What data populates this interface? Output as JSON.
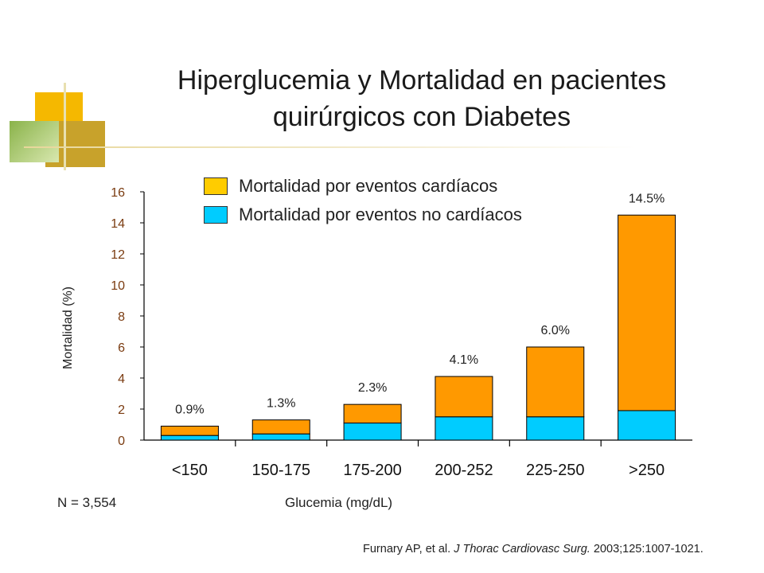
{
  "title": "Hiperglucemia y Mortalidad en pacientes\nquirúrgicos con Diabetes",
  "colors": {
    "cardiac": "#ff9900",
    "noncardiac": "#00ccff",
    "tick_text": "#7a3b10",
    "deco_yellow": "#f5b800",
    "deco_olive": "#c8a22b",
    "deco_green": "#8ab34a"
  },
  "legend": [
    {
      "label": "Mortalidad por eventos cardíacos",
      "color": "#ffcc00"
    },
    {
      "label": "Mortalidad por eventos no cardíacos",
      "color": "#00ccff"
    }
  ],
  "n_label": "N = 3,554",
  "citation": {
    "authors": "Furnary AP, et al. ",
    "journal": "J Thorac Cardiovasc Surg.",
    "details": " 2003;125:1007-1021."
  },
  "chart_data": {
    "type": "bar",
    "stacked": true,
    "title": "Hiperglucemia y Mortalidad en pacientes quirúrgicos con Diabetes",
    "xlabel": "Glucemia (mg/dL)",
    "ylabel": "Mortalidad (%)",
    "ylim": [
      0,
      16
    ],
    "yticks": [
      0,
      2,
      4,
      6,
      8,
      10,
      12,
      14,
      16
    ],
    "grid": false,
    "legend_position": "top",
    "categories": [
      "<150",
      "150-175",
      "175-200",
      "200-252",
      "225-250",
      ">250"
    ],
    "series": [
      {
        "name": "Mortalidad por eventos no cardíacos",
        "values": [
          0.3,
          0.4,
          1.1,
          1.5,
          1.5,
          1.9
        ]
      },
      {
        "name": "Mortalidad por eventos cardíacos",
        "values": [
          0.6,
          0.9,
          1.2,
          2.6,
          4.5,
          12.6
        ]
      }
    ],
    "totals": [
      0.9,
      1.3,
      2.3,
      4.1,
      6.0,
      14.5
    ],
    "data_labels": [
      "0.9%",
      "1.3%",
      "2.3%",
      "4.1%",
      "6.0%",
      "14.5%"
    ]
  }
}
